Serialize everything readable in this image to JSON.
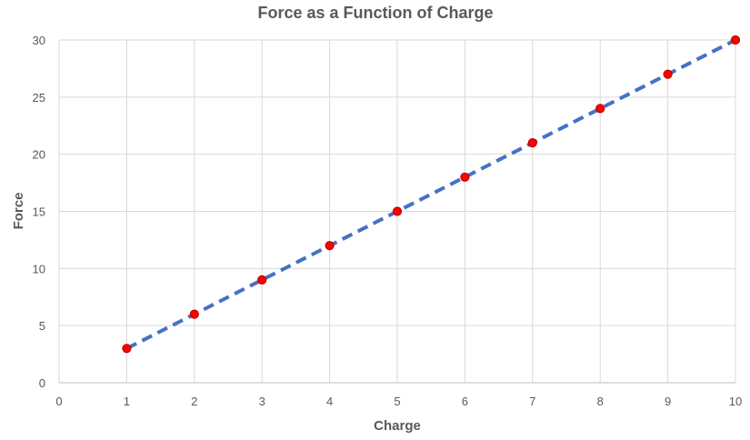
{
  "chart_data": {
    "type": "scatter",
    "title": "Force as a Function of Charge",
    "xlabel": "Charge",
    "ylabel": "Force",
    "xlim": [
      0,
      10
    ],
    "ylim": [
      0,
      30
    ],
    "x_ticks": [
      0,
      1,
      2,
      3,
      4,
      5,
      6,
      7,
      8,
      9,
      10
    ],
    "y_ticks": [
      0,
      5,
      10,
      15,
      20,
      25,
      30
    ],
    "grid": true,
    "legend": "none",
    "series": [
      {
        "x": [
          1,
          2,
          3,
          4,
          5,
          6,
          7,
          8,
          9,
          10
        ],
        "y": [
          3,
          6,
          9,
          12,
          15,
          18,
          21,
          24,
          27,
          30
        ],
        "marker_color": "#ff0000",
        "marker_edge_color": "#c00000"
      }
    ],
    "trendline": {
      "type": "linear",
      "style": "dashed",
      "color": "#4472c4",
      "x": [
        1,
        10
      ],
      "y": [
        3,
        30
      ]
    }
  }
}
